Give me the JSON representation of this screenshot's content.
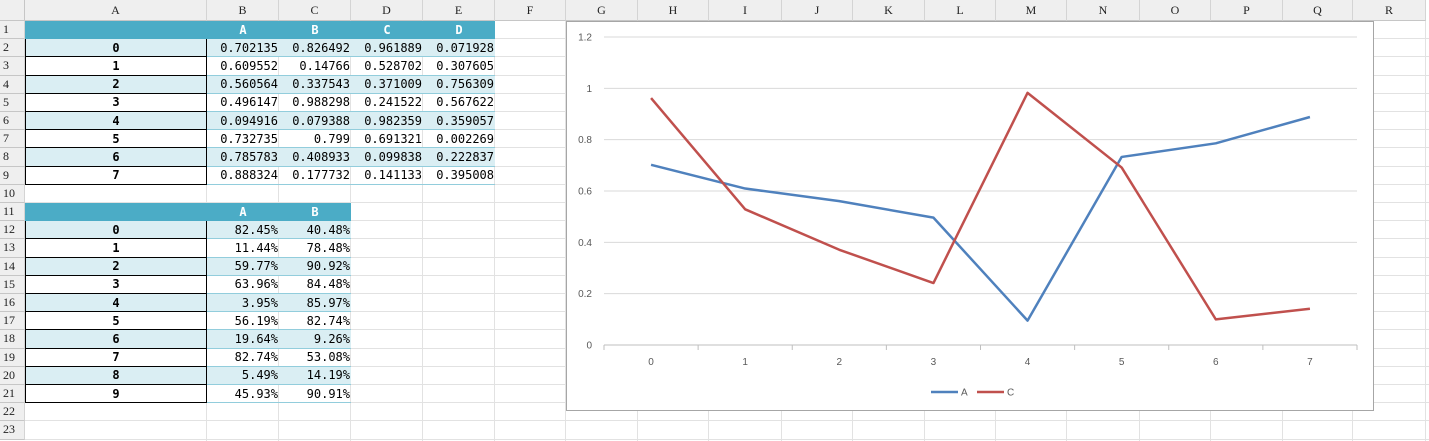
{
  "columns": [
    "A",
    "B",
    "C",
    "D",
    "E",
    "F",
    "G",
    "H",
    "I",
    "J",
    "K",
    "L",
    "M",
    "N",
    "O",
    "P",
    "Q",
    "R"
  ],
  "rows": [
    "1",
    "2",
    "3",
    "4",
    "5",
    "6",
    "7",
    "8",
    "9",
    "10",
    "11",
    "12",
    "13",
    "14",
    "15",
    "16",
    "17",
    "18",
    "19",
    "20",
    "21",
    "22",
    "23"
  ],
  "table1": {
    "headers": [
      "A",
      "B",
      "C",
      "D"
    ],
    "index": [
      "0",
      "1",
      "2",
      "3",
      "4",
      "5",
      "6",
      "7"
    ],
    "values": [
      [
        "0.702135",
        "0.826492",
        "0.961889",
        "0.071928"
      ],
      [
        "0.609552",
        "0.14766",
        "0.528702",
        "0.307605"
      ],
      [
        "0.560564",
        "0.337543",
        "0.371009",
        "0.756309"
      ],
      [
        "0.496147",
        "0.988298",
        "0.241522",
        "0.567622"
      ],
      [
        "0.094916",
        "0.079388",
        "0.982359",
        "0.359057"
      ],
      [
        "0.732735",
        "0.799",
        "0.691321",
        "0.002269"
      ],
      [
        "0.785783",
        "0.408933",
        "0.099838",
        "0.222837"
      ],
      [
        "0.888324",
        "0.177732",
        "0.141133",
        "0.395008"
      ]
    ]
  },
  "table2": {
    "headers": [
      "A",
      "B"
    ],
    "index": [
      "0",
      "1",
      "2",
      "3",
      "4",
      "5",
      "6",
      "7",
      "8",
      "9"
    ],
    "values": [
      [
        "82.45%",
        "40.48%"
      ],
      [
        "11.44%",
        "78.48%"
      ],
      [
        "59.77%",
        "90.92%"
      ],
      [
        "63.96%",
        "84.48%"
      ],
      [
        "3.95%",
        "85.97%"
      ],
      [
        "56.19%",
        "82.74%"
      ],
      [
        "19.64%",
        "9.26%"
      ],
      [
        "82.74%",
        "53.08%"
      ],
      [
        "5.49%",
        "14.19%"
      ],
      [
        "45.93%",
        "90.91%"
      ]
    ]
  },
  "chart_data": {
    "type": "line",
    "x": [
      0,
      1,
      2,
      3,
      4,
      5,
      6,
      7
    ],
    "ylim": [
      0,
      1.2
    ],
    "yticks": [
      "0",
      "0.2",
      "0.4",
      "0.6",
      "0.8",
      "1",
      "1.2"
    ],
    "grid": true,
    "legend": "bottom",
    "series": [
      {
        "name": "A",
        "color": "#4f81bd",
        "values": [
          0.702135,
          0.609552,
          0.560564,
          0.496147,
          0.094916,
          0.732735,
          0.785783,
          0.888324
        ]
      },
      {
        "name": "C",
        "color": "#c0504d",
        "values": [
          0.961889,
          0.528702,
          0.371009,
          0.241522,
          0.982359,
          0.691321,
          0.099838,
          0.141133
        ]
      }
    ]
  }
}
